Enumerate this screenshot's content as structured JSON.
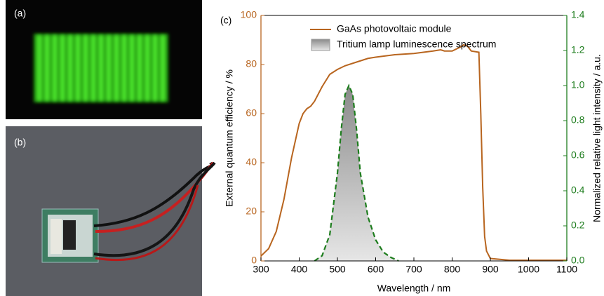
{
  "photo_labels": [
    "(a)",
    "(b)"
  ],
  "chart_data": {
    "type": "line",
    "panel_label": "(c)",
    "xlabel": "Wavelength / nm",
    "ylabel": "External quantum efficiency / %",
    "y2label": "Normalized relative light intensity / a.u.",
    "xlim": [
      300,
      1100
    ],
    "xticks": [
      300,
      400,
      500,
      600,
      700,
      800,
      900,
      1000,
      1100
    ],
    "ylim": [
      0,
      100
    ],
    "yticks": [
      0,
      20,
      40,
      60,
      80,
      100
    ],
    "y2lim": [
      0,
      1.4
    ],
    "y2ticks": [
      {
        "value": 0,
        "label": "0.0"
      },
      0.2,
      0.4,
      0.6,
      0.8,
      {
        "value": 1,
        "label": "1.0"
      },
      1.2,
      1.4
    ],
    "legend": "top",
    "series": [
      {
        "name": "GaAs photovoltaic module",
        "color": "#b8651f",
        "style": "line",
        "x": [
          300,
          320,
          340,
          360,
          380,
          400,
          410,
          420,
          430,
          440,
          460,
          480,
          500,
          520,
          550,
          580,
          600,
          650,
          700,
          750,
          770,
          780,
          800,
          820,
          830,
          840,
          850,
          870,
          875,
          880,
          885,
          890,
          900,
          950,
          1000,
          1100
        ],
        "values": [
          2,
          5,
          12,
          25,
          42,
          56,
          60,
          62,
          63,
          65,
          71,
          76,
          78,
          79.5,
          81,
          82.5,
          83,
          84,
          84.5,
          85.5,
          86,
          85.5,
          85.5,
          87,
          88,
          87.5,
          85.5,
          85,
          60,
          30,
          10,
          4,
          1,
          0.3,
          0.3,
          0.3
        ]
      },
      {
        "name": "Tritium lamp luminescence spectrum",
        "color": "#1e7d1e",
        "style": "area",
        "axis": "y2",
        "x": [
          440,
          460,
          480,
          500,
          510,
          520,
          530,
          540,
          550,
          560,
          580,
          600,
          620,
          640,
          660
        ],
        "values": [
          0,
          0.03,
          0.15,
          0.5,
          0.75,
          0.95,
          1.0,
          0.95,
          0.75,
          0.5,
          0.25,
          0.12,
          0.05,
          0.02,
          0
        ]
      }
    ]
  }
}
